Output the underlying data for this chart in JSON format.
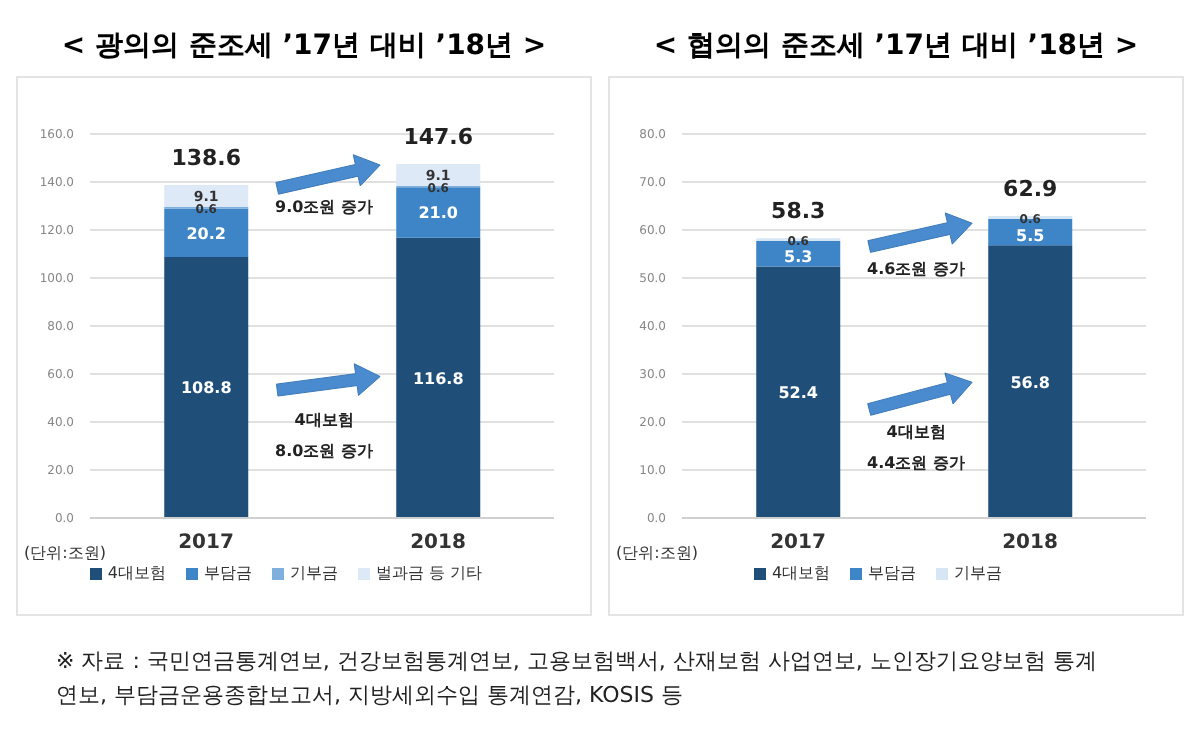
{
  "chart_data": [
    {
      "type": "bar",
      "title": "< 광의의 준조세 ’17년 대비 ’18년 >",
      "categories": [
        "2017",
        "2018"
      ],
      "stacked": true,
      "ylim": [
        0,
        160
      ],
      "yticks": [
        {
          "value": 0,
          "label": "0.0"
        },
        {
          "value": 20,
          "label": "20.0"
        },
        {
          "value": 40,
          "label": "40.0"
        },
        {
          "value": 60,
          "label": "60.0"
        },
        {
          "value": 80,
          "label": "80.0"
        },
        {
          "value": 100,
          "label": "100.0"
        },
        {
          "value": 120,
          "label": "120.0"
        },
        {
          "value": 140,
          "label": "140.0"
        },
        {
          "value": 160,
          "label": "160.0"
        }
      ],
      "grid": "y",
      "legend": "bottom",
      "series": [
        {
          "name": "4대보험",
          "color": "#1f4e79",
          "values": [
            108.8,
            116.8
          ],
          "value_labels": [
            "108.8",
            "116.8"
          ]
        },
        {
          "name": "부담금",
          "color": "#3d85c6",
          "values": [
            20.2,
            21.0
          ],
          "value_labels": [
            "20.2",
            "21.0"
          ]
        },
        {
          "name": "기부금",
          "color": "#7fafdc",
          "values": [
            0.6,
            0.6
          ],
          "value_labels": [
            "0.6",
            "0.6"
          ]
        },
        {
          "name": "벌과금 등 기타",
          "color": "#dde9f6",
          "values": [
            9.1,
            9.1
          ],
          "value_labels": [
            "9.1",
            "9.1"
          ]
        }
      ],
      "totals": [
        "138.6",
        "147.6"
      ],
      "annotations": [
        "9.0조원 증가",
        "4대보험",
        "8.0조원 증가",
        "(단위:조원)"
      ]
    },
    {
      "type": "bar",
      "title": "< 협의의 준조세 ’17년 대비 ’18년 >",
      "categories": [
        "2017",
        "2018"
      ],
      "stacked": true,
      "ylim": [
        0,
        80
      ],
      "yticks": [
        {
          "value": 0,
          "label": "0.0"
        },
        {
          "value": 10,
          "label": "10.0"
        },
        {
          "value": 20,
          "label": "20.0"
        },
        {
          "value": 30,
          "label": "30.0"
        },
        {
          "value": 40,
          "label": "40.0"
        },
        {
          "value": 50,
          "label": "50.0"
        },
        {
          "value": 60,
          "label": "60.0"
        },
        {
          "value": 70,
          "label": "70.0"
        },
        {
          "value": 80,
          "label": "80.0"
        }
      ],
      "grid": "y",
      "legend": "bottom",
      "series": [
        {
          "name": "4대보험",
          "color": "#1f4e79",
          "values": [
            52.4,
            56.8
          ],
          "value_labels": [
            "52.4",
            "56.8"
          ]
        },
        {
          "name": "부담금",
          "color": "#3d85c6",
          "values": [
            5.3,
            5.5
          ],
          "value_labels": [
            "5.3",
            "5.5"
          ]
        },
        {
          "name": "기부금",
          "color": "#d6e6f5",
          "values": [
            0.6,
            0.6
          ],
          "value_labels": [
            "0.6",
            "0.6"
          ]
        }
      ],
      "totals": [
        "58.3",
        "62.9"
      ],
      "annotations": [
        "4.6조원 증가",
        "4대보험",
        "4.4조원 증가",
        "(단위:조원)",
        "※ 자료 : 국민연금통계연보, 건강보험통계연보, 고용보험백서, 산재보험 사업연보, 노인장기요양보험 통계연보, 부담금운용종합보고서, 지방세외수입 통계연감, KOSIS 등"
      ]
    }
  ]
}
